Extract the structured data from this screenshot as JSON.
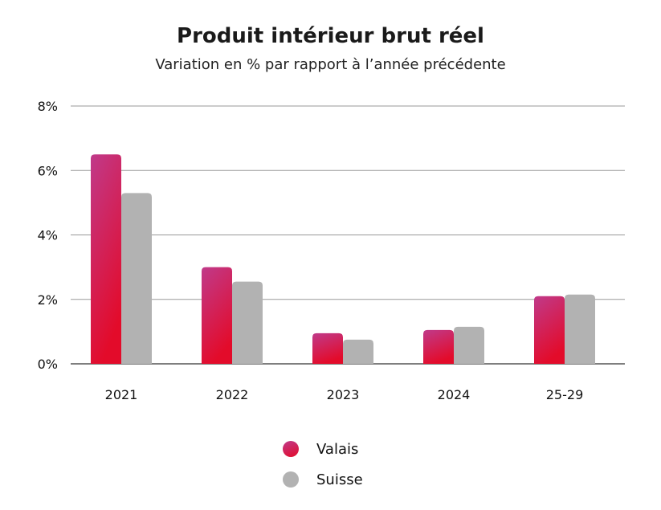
{
  "chart_data": {
    "type": "bar",
    "title": "Produit intérieur brut réel",
    "subtitle": "Variation en % par rapport à l’année précédente",
    "categories": [
      "2021",
      "2022",
      "2023",
      "2024",
      "25-29"
    ],
    "series": [
      {
        "name": "Valais",
        "values": [
          6.5,
          3.0,
          0.95,
          1.05,
          2.1
        ],
        "color_top": "#c03a8a",
        "color_bottom": "#e30b2a"
      },
      {
        "name": "Suisse",
        "values": [
          5.3,
          2.55,
          0.75,
          1.15,
          2.15
        ],
        "color": "#b2b2b2"
      }
    ],
    "yticks": [
      "0%",
      "2%",
      "4%",
      "6%",
      "8%"
    ],
    "ytick_values": [
      0,
      2,
      4,
      6,
      8
    ],
    "ylim": [
      0,
      8
    ],
    "grid": true,
    "legend_placement": "bottom-center"
  }
}
